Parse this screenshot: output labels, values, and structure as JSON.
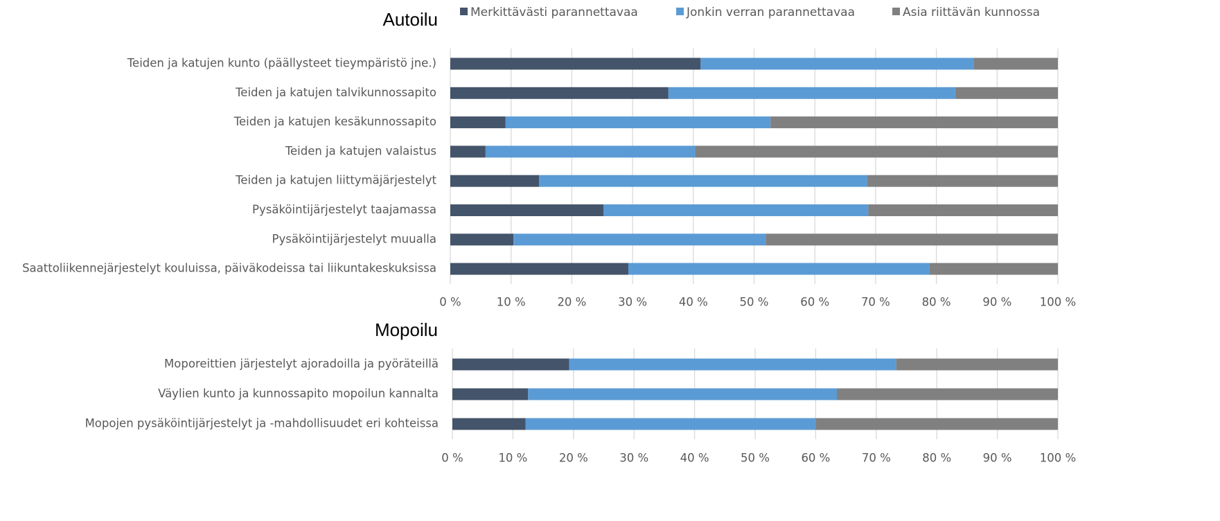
{
  "chart_data": [
    {
      "type": "bar",
      "orientation": "horizontal",
      "stacked": true,
      "title": "Autoilu",
      "categories": [
        "Teiden ja katujen kunto (päällysteet tieympäristö jne.)",
        "Teiden ja katujen talvikunnossapito",
        "Teiden ja katujen kesäkunnossapito",
        "Teiden ja katujen valaistus",
        "Teiden ja katujen liittymäjärjestelyt",
        "Pysäköintijärjestelyt taajamassa",
        "Pysäköintijärjestelyt muualla",
        "Saattoliikennejärjestelyt kouluissa, päiväkodeissa tai liikuntakeskuksissa"
      ],
      "series": [
        {
          "name": "Merkittävästi parannettavaa",
          "color": "#44546a",
          "values": [
            41.2,
            35.9,
            9.1,
            5.8,
            14.6,
            25.2,
            10.4,
            29.3
          ]
        },
        {
          "name": "Jonkin verran parannettavaa",
          "color": "#5b9bd5",
          "values": [
            45.0,
            47.2,
            43.6,
            34.5,
            54.0,
            43.6,
            41.5,
            49.6
          ]
        },
        {
          "name": "Asia riittävän kunnossa",
          "color": "#808080",
          "values": [
            13.8,
            16.9,
            47.3,
            59.7,
            31.4,
            31.2,
            48.1,
            21.1
          ]
        }
      ],
      "xlim": [
        0,
        100
      ],
      "xticks": [
        {
          "value": 0,
          "label": "0 %"
        },
        {
          "value": 10,
          "label": "10 %"
        },
        {
          "value": 20,
          "label": "20 %"
        },
        {
          "value": 30,
          "label": "30 %"
        },
        {
          "value": 40,
          "label": "40 %"
        },
        {
          "value": 50,
          "label": "50 %"
        },
        {
          "value": 60,
          "label": "60 %"
        },
        {
          "value": 70,
          "label": "70 %"
        },
        {
          "value": 80,
          "label": "80 %"
        },
        {
          "value": 90,
          "label": "90 %"
        },
        {
          "value": 100,
          "label": "100 %"
        }
      ],
      "grid": true,
      "legend": "top"
    },
    {
      "type": "bar",
      "orientation": "horizontal",
      "stacked": true,
      "title": "Mopoilu",
      "categories": [
        "Moporeittien järjestelyt ajoradoilla ja pyöräteillä",
        "Väylien kunto ja kunnossapito mopoilun kannalta",
        "Mopojen pysäköintijärjestelyt ja -mahdollisuudet eri kohteissa"
      ],
      "series": [
        {
          "color": "#44546a",
          "values": [
            19.3,
            12.5,
            12.1
          ]
        },
        {
          "color": "#5b9bd5",
          "values": [
            54.0,
            51.0,
            47.9
          ]
        },
        {
          "color": "#808080",
          "values": [
            26.7,
            36.5,
            40.0
          ]
        }
      ],
      "xlim": [
        0,
        100
      ],
      "xticks": [
        {
          "value": 0,
          "label": "0 %"
        },
        {
          "value": 10,
          "label": "10 %"
        },
        {
          "value": 20,
          "label": "20 %"
        },
        {
          "value": 30,
          "label": "30 %"
        },
        {
          "value": 40,
          "label": "40 %"
        },
        {
          "value": 50,
          "label": "50 %"
        },
        {
          "value": 60,
          "label": "60 %"
        },
        {
          "value": 70,
          "label": "70 %"
        },
        {
          "value": 80,
          "label": "80 %"
        },
        {
          "value": 90,
          "label": "90 %"
        },
        {
          "value": 100,
          "label": "100 %"
        }
      ],
      "grid": true
    }
  ]
}
